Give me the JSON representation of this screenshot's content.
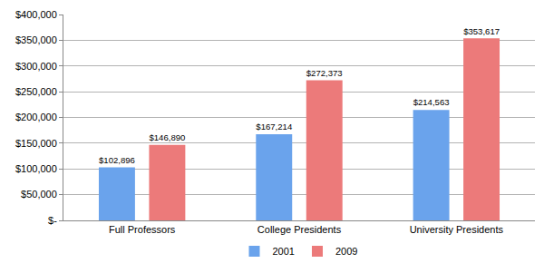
{
  "chart_data": {
    "type": "bar",
    "categories": [
      "Full Professors",
      "College Presidents",
      "University Presidents"
    ],
    "series": [
      {
        "name": "2001",
        "color": "#6aa3ec",
        "values": [
          102896,
          167214,
          214563
        ],
        "value_labels": [
          "$102,896",
          "$167,214",
          "$214,563"
        ]
      },
      {
        "name": "2009",
        "color": "#ec7a7a",
        "values": [
          146890,
          272373,
          353617
        ],
        "value_labels": [
          "$146,890",
          "$272,373",
          "$353,617"
        ]
      }
    ],
    "ylim": [
      0,
      400000
    ],
    "yticks": [
      {
        "value": 0,
        "label": "$-"
      },
      {
        "value": 50000,
        "label": "$50,000"
      },
      {
        "value": 100000,
        "label": "$100,000"
      },
      {
        "value": 150000,
        "label": "$150,000"
      },
      {
        "value": 200000,
        "label": "$200,000"
      },
      {
        "value": 250000,
        "label": "$250,000"
      },
      {
        "value": 300000,
        "label": "$300,000"
      },
      {
        "value": 350000,
        "label": "$350,000"
      },
      {
        "value": 400000,
        "label": "$400,000"
      }
    ],
    "grid": true,
    "legend": "bottom",
    "data_labels": true
  }
}
